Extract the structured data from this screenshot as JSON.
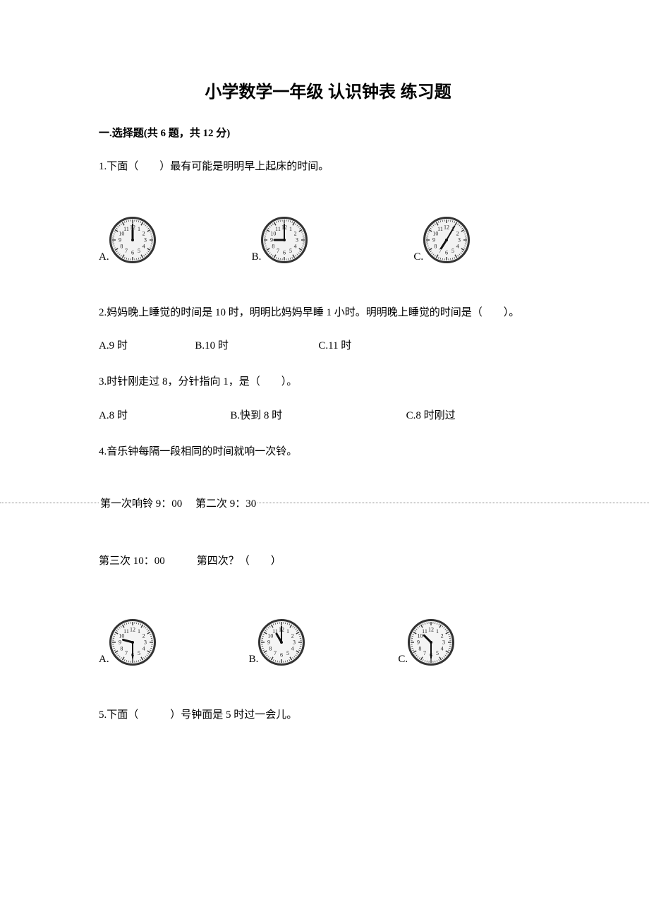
{
  "title": "小学数学一年级 认识钟表 练习题",
  "section1": {
    "heading": "一.选择题(共 6 题，共 12 分)"
  },
  "q1": {
    "text": "1.下面（　　）最有可能是明明早上起床的时间。",
    "opts": {
      "a": "A.",
      "b": "B.",
      "c": "C."
    },
    "clocks": {
      "a": {
        "hour": 12,
        "minute": 0,
        "size": 66,
        "face_fill": "#f2f2f2",
        "rim": "#333",
        "rim_w": 3,
        "tick": "#333",
        "num_fill": "#222",
        "num_size": 8,
        "hand": "#111"
      },
      "b": {
        "hour": 9,
        "minute": 0,
        "size": 66,
        "face_fill": "#f2f2f2",
        "rim": "#333",
        "rim_w": 3,
        "tick": "#333",
        "num_fill": "#222",
        "num_size": 8,
        "hand": "#111"
      },
      "c": {
        "hour": 7,
        "minute": 5,
        "size": 66,
        "face_fill": "#f2f2f2",
        "rim": "#333",
        "rim_w": 3,
        "tick": "#333",
        "num_fill": "#222",
        "num_size": 8,
        "hand": "#111"
      }
    },
    "gaps": {
      "a_left": 0,
      "ab": 136,
      "bc": 150
    }
  },
  "q2": {
    "text": "2.妈妈晚上睡觉的时间是 10 时，明明比妈妈早睡 1 小时。明明晚上睡觉的时间是（　　）。",
    "opts": {
      "a": "A.9 时",
      "b": "B.10 时",
      "c": "C.11 时"
    },
    "gaps": {
      "ab": 88,
      "bc": 120
    }
  },
  "q3": {
    "text": "3.时针刚走过 8，分针指向 1，是（　　）。",
    "opts": {
      "a": "A.8 时",
      "b": "B.快到 8 时",
      "c": "C.8 时刚过"
    },
    "gaps": {
      "ab": 138,
      "bc": 168
    }
  },
  "q4": {
    "text": "4.音乐钟每隔一段相同的时间就响一次铃。",
    "row1": "第一次响铃 9：00　 第二次 9：30",
    "row2": "第三次 10：00　　　第四次？（　　）",
    "opts": {
      "a": "A.",
      "b": "B.",
      "c": "C."
    },
    "clocks": {
      "a": {
        "hour": 9,
        "minute": 30,
        "size": 66,
        "face_fill": "#f4f4f4",
        "rim": "#333",
        "rim_w": 3,
        "tick": "#333",
        "num_fill": "#222",
        "num_size": 8,
        "hand": "#111"
      },
      "b": {
        "hour": 11,
        "minute": 0,
        "size": 66,
        "face_fill": "#f4f4f4",
        "rim": "#333",
        "rim_w": 3,
        "tick": "#333",
        "num_fill": "#222",
        "num_size": 8,
        "hand": "#111"
      },
      "c": {
        "hour": 10,
        "minute": 30,
        "size": 66,
        "face_fill": "#f4f4f4",
        "rim": "#333",
        "rim_w": 3,
        "tick": "#333",
        "num_fill": "#222",
        "num_size": 8,
        "hand": "#111"
      }
    },
    "gaps": {
      "a_left": 0,
      "ab": 132,
      "bc": 132
    }
  },
  "q5": {
    "text": "5.下面（　　　）号钟面是 5 时过一会儿。"
  }
}
